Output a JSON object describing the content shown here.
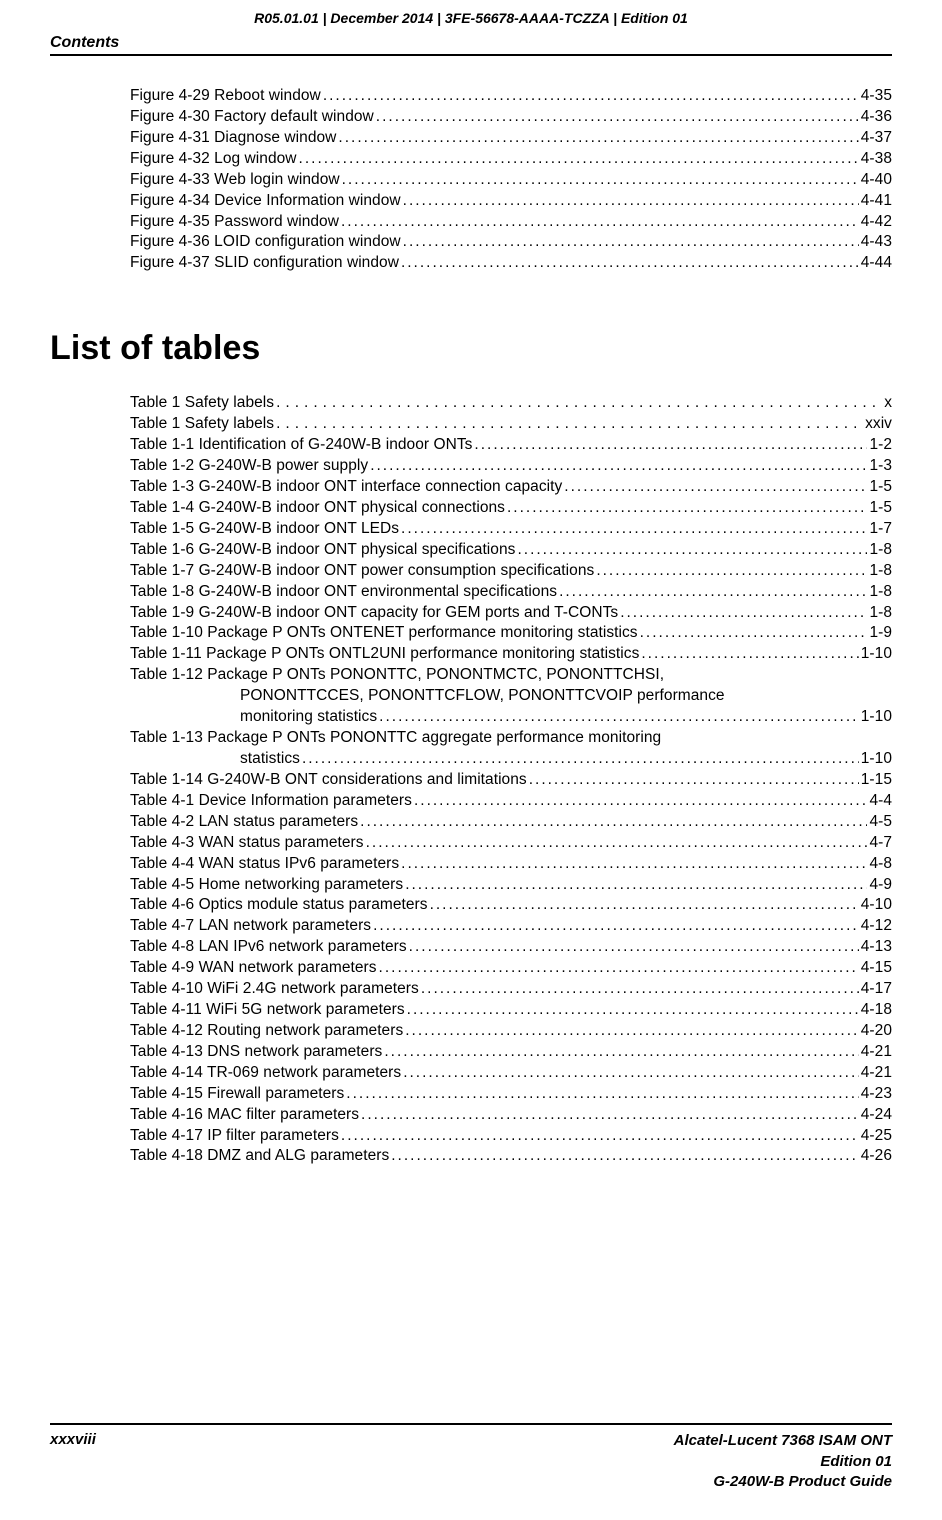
{
  "header": {
    "top_line": "R05.01.01 | December 2014 | 3FE-56678-AAAA-TCZZA | Edition 01",
    "section_label": "Contents"
  },
  "figures": [
    {
      "label": "Figure 4-29  Reboot window",
      "page": "4-35"
    },
    {
      "label": "Figure 4-30  Factory default window",
      "page": "4-36"
    },
    {
      "label": "Figure 4-31  Diagnose window",
      "page": "4-37"
    },
    {
      "label": "Figure 4-32  Log window",
      "page": "4-38"
    },
    {
      "label": "Figure 4-33  Web login window",
      "page": "4-40"
    },
    {
      "label": "Figure 4-34  Device Information window",
      "page": "4-41"
    },
    {
      "label": "Figure 4-35  Password window",
      "page": "4-42"
    },
    {
      "label": "Figure 4-36  LOID configuration window",
      "page": "4-43"
    },
    {
      "label": "Figure 4-37  SLID configuration window",
      "page": "4-44"
    }
  ],
  "tables_heading": "List of tables",
  "tables": [
    {
      "label": "Table 1  Safety labels",
      "page": "x",
      "sparse": true
    },
    {
      "label": "Table 1  Safety labels",
      "page": "xxiv",
      "sparse": true
    },
    {
      "label": "Table 1-1 Identification of G-240W-B indoor ONTs",
      "page": "1-2"
    },
    {
      "label": "Table 1-2 G-240W-B power supply",
      "page": "1-3"
    },
    {
      "label": "Table 1-3 G-240W-B indoor ONT interface connection capacity",
      "page": "1-5"
    },
    {
      "label": "Table 1-4 G-240W-B indoor ONT physical connections",
      "page": "1-5"
    },
    {
      "label": "Table 1-5 G-240W-B indoor ONT LEDs",
      "page": "1-7"
    },
    {
      "label": "Table 1-6 G-240W-B indoor ONT physical specifications",
      "page": "1-8"
    },
    {
      "label": "Table 1-7 G-240W-B indoor ONT power consumption specifications",
      "page": "1-8"
    },
    {
      "label": "Table 1-8 G-240W-B indoor ONT environmental specifications",
      "page": "1-8"
    },
    {
      "label": "Table 1-9 G-240W-B indoor ONT capacity for GEM ports and T-CONTs",
      "page": "1-8"
    },
    {
      "label": "Table 1-10 Package P ONTs ONTENET performance monitoring statistics",
      "page": "1-9"
    },
    {
      "label": "Table 1-11 Package P ONTs ONTL2UNI performance monitoring statistics",
      "page": "1-10"
    },
    {
      "label": "Table 1-12 Package P ONTs PONONTTC, PONONTMCTC, PONONTTCHSI,",
      "page": "",
      "nodots": true
    },
    {
      "label": "PONONTTCCES, PONONTTCFLOW, PONONTTCVOIP performance",
      "page": "",
      "nodots": true,
      "cont": true
    },
    {
      "label": "monitoring statistics",
      "page": "1-10",
      "cont": true
    },
    {
      "label": "Table 1-13 Package P ONTs PONONTTC aggregate performance monitoring",
      "page": "",
      "nodots": true
    },
    {
      "label": "statistics",
      "page": "1-10",
      "cont": true
    },
    {
      "label": "Table 1-14 G-240W-B ONT considerations and limitations",
      "page": "1-15"
    },
    {
      "label": "Table 4-1 Device Information parameters",
      "page": "4-4"
    },
    {
      "label": "Table 4-2 LAN status parameters",
      "page": "4-5"
    },
    {
      "label": "Table 4-3 WAN status parameters",
      "page": "4-7"
    },
    {
      "label": "Table 4-4 WAN status IPv6 parameters",
      "page": "4-8"
    },
    {
      "label": "Table 4-5 Home networking parameters",
      "page": "4-9"
    },
    {
      "label": "Table 4-6 Optics module status parameters",
      "page": "4-10"
    },
    {
      "label": "Table 4-7 LAN network parameters",
      "page": "4-12"
    },
    {
      "label": "Table 4-8 LAN IPv6 network parameters",
      "page": "4-13"
    },
    {
      "label": "Table 4-9 WAN network parameters",
      "page": "4-15"
    },
    {
      "label": "Table 4-10 WiFi 2.4G network parameters",
      "page": "4-17"
    },
    {
      "label": "Table 4-11 WiFi 5G network parameters",
      "page": "4-18"
    },
    {
      "label": "Table 4-12 Routing network parameters",
      "page": "4-20"
    },
    {
      "label": "Table 4-13 DNS network parameters",
      "page": "4-21"
    },
    {
      "label": "Table 4-14 TR-069 network parameters",
      "page": "4-21"
    },
    {
      "label": "Table 4-15 Firewall parameters",
      "page": "4-23"
    },
    {
      "label": "Table 4-16 MAC filter parameters",
      "page": "4-24"
    },
    {
      "label": "Table 4-17 IP filter parameters",
      "page": "4-25"
    },
    {
      "label": "Table 4-18 DMZ and ALG parameters",
      "page": "4-26"
    }
  ],
  "footer": {
    "page_num": "xxxviii",
    "right1": "Alcatel-Lucent 7368 ISAM ONT",
    "right2": "Edition 01",
    "right3": "G-240W-B Product Guide"
  }
}
